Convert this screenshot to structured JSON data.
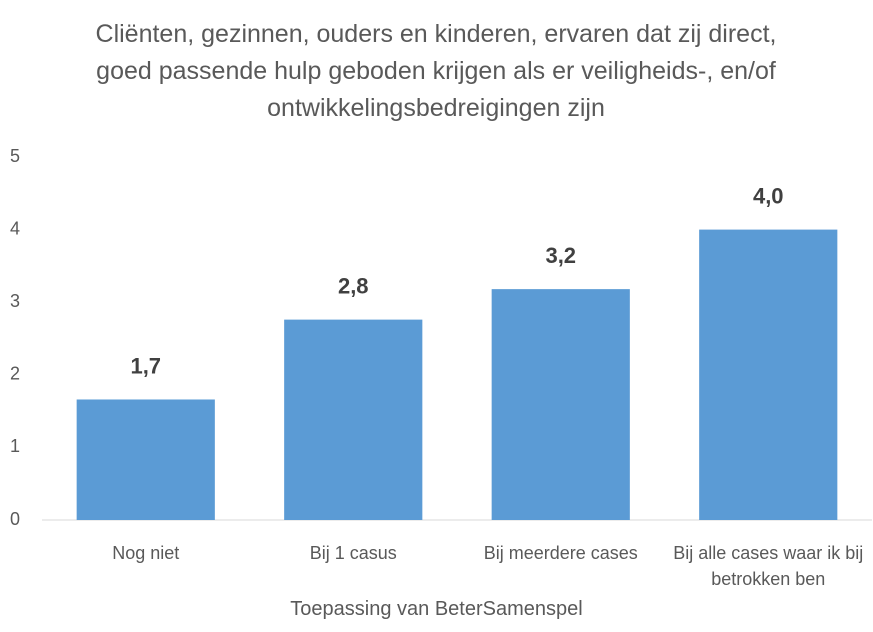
{
  "chart_data": {
    "type": "bar",
    "title": "Cliënten, gezinnen, ouders en kinderen, ervaren dat zij direct, goed passende hulp geboden krijgen als er veiligheids-, en/of ontwikkelingsbedreigingen zijn",
    "x_label": "Toepassing van BeterSamenspel",
    "categories": [
      "Nog niet",
      "Bij 1 casus",
      "Bij meerdere cases",
      "Bij alle cases waar ik bij betrokken ben"
    ],
    "values": [
      1.66,
      2.76,
      3.18,
      4.0
    ],
    "value_labels": [
      "1,7",
      "2,8",
      "3,2",
      "4,0"
    ],
    "color": "#5b9bd5",
    "ylim": [
      0,
      5
    ],
    "yticks": [
      0,
      1,
      2,
      3,
      4,
      5
    ],
    "grid": false
  }
}
